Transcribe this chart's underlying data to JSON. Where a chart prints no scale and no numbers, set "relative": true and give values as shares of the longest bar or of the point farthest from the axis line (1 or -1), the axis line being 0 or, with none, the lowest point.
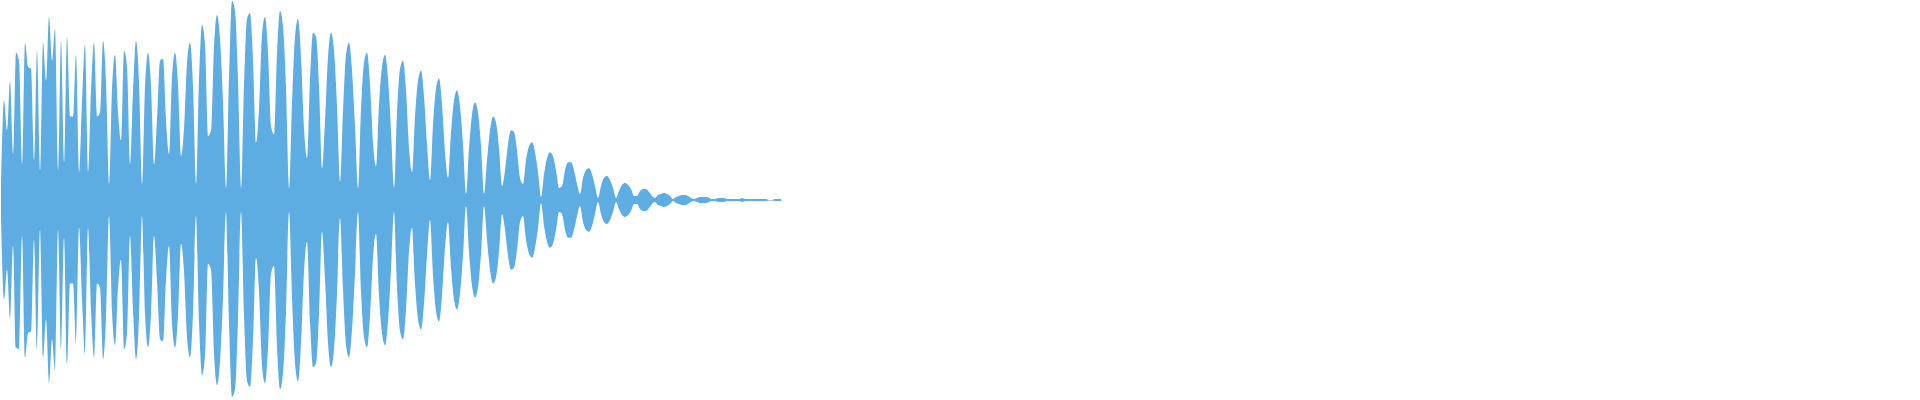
{
  "chart_data": {
    "type": "area",
    "relative": true,
    "categories": [
      null,
      null,
      null,
      null,
      null,
      null,
      null,
      null,
      null,
      null,
      null,
      null,
      null,
      null,
      null,
      null,
      null,
      null,
      null,
      null,
      null,
      null,
      null,
      null,
      null,
      null,
      null,
      null,
      null,
      null,
      null,
      null,
      null,
      null,
      null,
      null,
      null,
      null,
      null,
      null,
      null,
      null,
      null,
      null,
      null,
      null,
      null,
      null,
      null,
      null,
      null,
      null,
      null,
      null,
      null,
      null,
      null,
      null,
      null,
      null,
      null,
      null,
      null,
      null,
      null,
      null,
      null,
      null,
      null,
      null,
      null,
      null,
      null,
      null,
      null,
      null,
      null,
      null,
      null,
      null,
      null,
      null,
      null,
      null,
      null,
      null,
      null,
      null,
      null,
      null,
      null,
      null,
      null,
      null,
      null,
      null,
      null,
      null,
      null,
      null,
      null,
      null,
      null,
      null,
      null,
      null,
      null,
      null,
      null,
      null,
      null,
      null,
      null,
      null,
      null,
      null,
      null,
      null,
      null,
      null,
      null,
      null,
      null,
      null,
      null,
      null,
      null,
      null,
      null,
      null,
      null,
      null,
      null,
      null,
      null,
      null,
      null,
      null,
      null,
      null,
      null,
      null,
      null,
      null,
      null,
      null,
      null,
      null,
      null,
      null,
      null,
      null,
      null,
      null,
      null,
      null,
      null,
      null,
      null,
      null,
      null,
      null,
      null,
      null,
      null,
      null,
      null,
      null,
      null,
      null,
      null,
      null,
      null,
      null,
      null,
      null,
      null,
      null,
      null,
      null,
      null,
      null,
      null,
      null,
      null,
      null,
      null,
      null,
      null,
      null,
      null,
      null,
      null,
      null,
      null,
      null,
      null,
      null,
      null,
      null,
      null,
      null,
      null,
      null,
      null,
      null,
      null,
      null,
      null,
      null,
      null,
      null,
      null,
      null,
      null,
      null,
      null,
      null,
      null,
      null,
      null,
      null,
      null,
      null,
      null,
      null,
      null,
      null,
      null,
      null,
      null,
      null,
      null,
      null,
      null,
      null,
      null,
      null,
      null,
      null,
      null,
      null,
      null,
      null,
      null,
      null,
      null,
      null,
      null,
      null,
      null,
      null,
      null,
      null,
      null,
      null,
      null,
      null,
      null,
      null,
      null
    ],
    "series": [
      {
        "color": "#5dade2",
        "values": [
          0.09,
          0.5,
          0.35,
          0.6,
          0.23,
          0.74,
          0.7,
          0.18,
          0.79,
          0.67,
          0.66,
          0.2,
          0.75,
          0.15,
          0.79,
          0.6,
          0.92,
          0.7,
          0.86,
          0.15,
          0.8,
          0.19,
          0.82,
          0.42,
          0.42,
          0.73,
          0.14,
          0.5,
          0.78,
          0.14,
          0.55,
          0.79,
          0.42,
          0.44,
          0.8,
          0.59,
          0.08,
          0.56,
          0.73,
          0.44,
          0.3,
          0.75,
          0.67,
          0.18,
          0.55,
          0.8,
          0.59,
          0.08,
          0.57,
          0.74,
          0.57,
          0.18,
          0.41,
          0.7,
          0.71,
          0.4,
          0.23,
          0.62,
          0.74,
          0.58,
          0.22,
          0.36,
          0.69,
          0.79,
          0.57,
          0.08,
          0.61,
          0.88,
          0.78,
          0.32,
          0.35,
          0.77,
          0.93,
          0.81,
          0.49,
          0.06,
          0.62,
          1.0,
          0.95,
          0.6,
          0.06,
          0.58,
          0.91,
          0.94,
          0.7,
          0.29,
          0.46,
          0.83,
          0.92,
          0.74,
          0.37,
          0.33,
          0.74,
          0.95,
          0.87,
          0.56,
          0.06,
          0.49,
          0.82,
          0.91,
          0.72,
          0.36,
          0.21,
          0.61,
          0.84,
          0.82,
          0.57,
          0.16,
          0.4,
          0.72,
          0.84,
          0.75,
          0.47,
          0.09,
          0.45,
          0.73,
          0.79,
          0.65,
          0.37,
          0.06,
          0.46,
          0.69,
          0.74,
          0.58,
          0.29,
          0.17,
          0.48,
          0.67,
          0.73,
          0.61,
          0.35,
          0.06,
          0.44,
          0.66,
          0.7,
          0.55,
          0.26,
          0.14,
          0.42,
          0.6,
          0.65,
          0.52,
          0.28,
          0.1,
          0.38,
          0.56,
          0.61,
          0.48,
          0.24,
          0.11,
          0.34,
          0.5,
          0.55,
          0.47,
          0.28,
          0.03,
          0.26,
          0.43,
          0.49,
          0.44,
          0.27,
          0.03,
          0.2,
          0.35,
          0.42,
          0.39,
          0.26,
          0.07,
          0.15,
          0.28,
          0.35,
          0.34,
          0.25,
          0.11,
          0.08,
          0.2,
          0.27,
          0.29,
          0.24,
          0.14,
          0.015,
          0.13,
          0.21,
          0.24,
          0.22,
          0.15,
          0.06,
          0.07,
          0.15,
          0.19,
          0.19,
          0.15,
          0.08,
          0.03,
          0.11,
          0.15,
          0.16,
          0.13,
          0.07,
          0.01,
          0.07,
          0.11,
          0.12,
          0.1,
          0.06,
          0.01,
          0.045,
          0.075,
          0.085,
          0.075,
          0.055,
          0.02,
          0.02,
          0.045,
          0.055,
          0.055,
          0.04,
          0.02,
          0.01,
          0.025,
          0.03,
          0.035,
          0.03,
          0.02,
          0.005,
          0.015,
          0.02,
          0.025,
          0.025,
          0.02,
          0.01,
          0.005,
          0.01,
          0.015,
          0.015,
          0.015,
          0.01,
          0.005,
          0.005,
          0.01,
          0.01,
          0.01,
          0.005,
          0.005,
          0.005,
          0.005,
          0.005,
          0.01,
          0.005,
          0.005,
          0.005,
          0.005,
          0.005,
          0.005,
          0.005,
          0.005,
          0,
          0,
          0.005,
          0.005,
          0.005
        ]
      },
      {
        "color": "#5dade2",
        "values": [
          -0.09,
          -0.5,
          -0.35,
          -0.6,
          -0.23,
          -0.74,
          -0.75,
          -0.18,
          -0.79,
          -0.67,
          -0.66,
          -0.2,
          -0.75,
          -0.15,
          -0.79,
          -0.6,
          -0.92,
          -0.7,
          -0.86,
          -0.15,
          -0.75,
          -0.19,
          -0.82,
          -0.42,
          -0.42,
          -0.73,
          -0.14,
          -0.5,
          -0.78,
          -0.14,
          -0.55,
          -0.79,
          -0.42,
          -0.44,
          -0.8,
          -0.59,
          -0.08,
          -0.56,
          -0.73,
          -0.44,
          -0.3,
          -0.75,
          -0.67,
          -0.18,
          -0.55,
          -0.8,
          -0.59,
          -0.08,
          -0.57,
          -0.74,
          -0.57,
          -0.18,
          -0.41,
          -0.7,
          -0.71,
          -0.4,
          -0.23,
          -0.62,
          -0.74,
          -0.58,
          -0.22,
          -0.36,
          -0.69,
          -0.79,
          -0.57,
          -0.08,
          -0.61,
          -0.88,
          -0.78,
          -0.32,
          -0.35,
          -0.77,
          -0.93,
          -0.81,
          -0.49,
          -0.06,
          -0.62,
          -0.99,
          -0.95,
          -0.6,
          -0.06,
          -0.58,
          -0.91,
          -0.94,
          -0.7,
          -0.29,
          -0.46,
          -0.83,
          -0.92,
          -0.74,
          -0.37,
          -0.33,
          -0.74,
          -0.95,
          -0.87,
          -0.56,
          -0.06,
          -0.49,
          -0.82,
          -0.91,
          -0.72,
          -0.36,
          -0.21,
          -0.61,
          -0.84,
          -0.82,
          -0.57,
          -0.16,
          -0.4,
          -0.72,
          -0.84,
          -0.75,
          -0.47,
          -0.09,
          -0.45,
          -0.73,
          -0.79,
          -0.65,
          -0.37,
          -0.06,
          -0.46,
          -0.69,
          -0.74,
          -0.58,
          -0.29,
          -0.17,
          -0.48,
          -0.67,
          -0.73,
          -0.61,
          -0.35,
          -0.06,
          -0.44,
          -0.66,
          -0.7,
          -0.55,
          -0.26,
          -0.14,
          -0.42,
          -0.6,
          -0.65,
          -0.52,
          -0.28,
          -0.1,
          -0.38,
          -0.56,
          -0.61,
          -0.48,
          -0.24,
          -0.11,
          -0.34,
          -0.5,
          -0.55,
          -0.47,
          -0.28,
          -0.03,
          -0.26,
          -0.43,
          -0.49,
          -0.44,
          -0.27,
          -0.03,
          -0.2,
          -0.35,
          -0.42,
          -0.39,
          -0.26,
          -0.07,
          -0.15,
          -0.28,
          -0.35,
          -0.34,
          -0.25,
          -0.11,
          -0.08,
          -0.2,
          -0.27,
          -0.29,
          -0.24,
          -0.14,
          -0.015,
          -0.13,
          -0.21,
          -0.24,
          -0.22,
          -0.15,
          -0.06,
          -0.07,
          -0.15,
          -0.19,
          -0.19,
          -0.15,
          -0.08,
          -0.03,
          -0.11,
          -0.15,
          -0.16,
          -0.13,
          -0.07,
          -0.01,
          -0.07,
          -0.11,
          -0.12,
          -0.1,
          -0.06,
          -0.01,
          -0.045,
          -0.075,
          -0.085,
          -0.075,
          -0.055,
          -0.02,
          -0.02,
          -0.045,
          -0.055,
          -0.055,
          -0.04,
          -0.02,
          -0.01,
          -0.025,
          -0.03,
          -0.035,
          -0.03,
          -0.02,
          -0.005,
          -0.015,
          -0.02,
          -0.025,
          -0.025,
          -0.02,
          -0.01,
          -0.005,
          -0.01,
          -0.015,
          -0.015,
          -0.015,
          -0.01,
          -0.005,
          -0.005,
          -0.01,
          -0.01,
          -0.01,
          -0.005,
          -0.005,
          -0.005,
          -0.005,
          -0.005,
          -0.01,
          -0.005,
          -0.005,
          -0.005,
          -0.005,
          -0.005,
          -0.005,
          -0.005,
          -0.005,
          0,
          0,
          -0.005,
          -0.005,
          -0.005
        ]
      }
    ]
  }
}
